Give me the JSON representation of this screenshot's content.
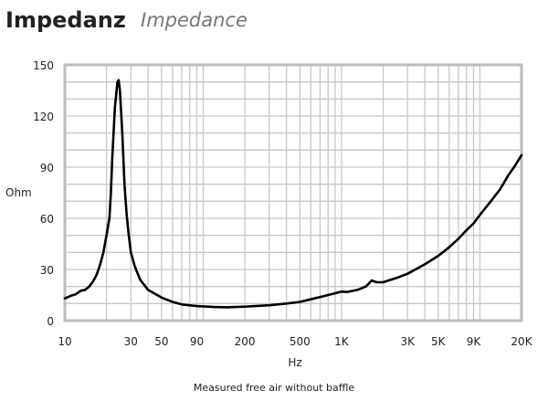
{
  "header": {
    "title": "Impedanz",
    "subtitle": "Impedance"
  },
  "note": "Measured free air without baffle",
  "chart_data": {
    "type": "line",
    "xlabel": "Hz",
    "ylabel": "Ohm",
    "xscale": "log",
    "xlim": [
      10,
      20000
    ],
    "ylim": [
      0,
      150
    ],
    "grid": true,
    "xticks": [
      10,
      30,
      50,
      90,
      200,
      500,
      1000,
      3000,
      5000,
      9000,
      20000
    ],
    "xtick_labels": [
      "10",
      "30",
      "50",
      "90",
      "200",
      "500",
      "1K",
      "3K",
      "5K",
      "9K",
      "20K"
    ],
    "yticks": [
      0,
      30,
      60,
      90,
      120,
      150
    ],
    "ytick_labels": [
      "0",
      "30",
      "60",
      "90",
      "120",
      "150"
    ],
    "colors": {
      "line": "#000000",
      "grid": "#c8c8c8",
      "frame": "#bdbdbd"
    },
    "series": [
      {
        "x": [
          10,
          11,
          12,
          13,
          14,
          15,
          16,
          17,
          18,
          19,
          20,
          21,
          21.5,
          22,
          23,
          24,
          24.5,
          25,
          26,
          27,
          28,
          29,
          30,
          32,
          35,
          40,
          50,
          60,
          70,
          90,
          120,
          150,
          200,
          300,
          400,
          500,
          600,
          800,
          1000,
          1100,
          1300,
          1500,
          1650,
          1800,
          2000,
          2500,
          3000,
          4000,
          5000,
          6000,
          7000,
          8000,
          9000,
          10000,
          12000,
          14000,
          16000,
          18000,
          20000
        ],
        "y": [
          13,
          14.5,
          15.5,
          17.5,
          18,
          20,
          23,
          27,
          33,
          40,
          50,
          60,
          75,
          95,
          125,
          140,
          141,
          135,
          110,
          80,
          62,
          50,
          40,
          32,
          24,
          18,
          13.5,
          11,
          9.5,
          8.5,
          8,
          7.8,
          8.2,
          9,
          10,
          11,
          12.5,
          15,
          17,
          16.8,
          18,
          20,
          23.5,
          22.5,
          22.5,
          25,
          27.5,
          33,
          38,
          43,
          48,
          53,
          57,
          62,
          70,
          77,
          85,
          91,
          97
        ]
      }
    ]
  }
}
